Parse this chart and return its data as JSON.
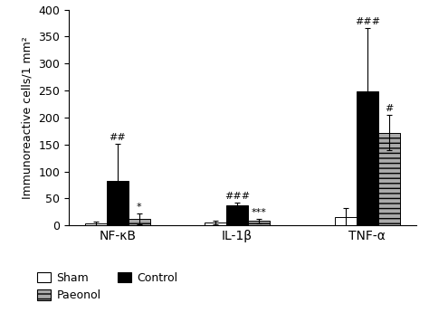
{
  "groups": [
    "NF-κB",
    "IL-1β",
    "TNF-α"
  ],
  "bar_labels": [
    "Sham",
    "Control",
    "Paeonol"
  ],
  "values": {
    "Sham": [
      3,
      5,
      15
    ],
    "Control": [
      83,
      38,
      248
    ],
    "Paeonol": [
      12,
      8,
      172
    ]
  },
  "errors": {
    "Sham": [
      4,
      3,
      18
    ],
    "Control": [
      68,
      5,
      118
    ],
    "Paeonol": [
      10,
      4,
      33
    ]
  },
  "annotations": {
    "Control": [
      "##",
      "###",
      "###"
    ],
    "Paeonol": [
      "*",
      "***",
      "#"
    ]
  },
  "ylabel": "Immunoreactive cells/1 mm²",
  "ylim": [
    0,
    400
  ],
  "yticks": [
    0,
    50,
    100,
    150,
    200,
    250,
    300,
    350,
    400
  ],
  "bar_width": 0.2,
  "colors": {
    "Sham": "white",
    "Control": "black",
    "Paeonol": "#aaaaaa"
  },
  "hatch": {
    "Sham": "",
    "Control": "",
    "Paeonol": "---"
  },
  "edgecolor": "black",
  "fig_bg": "white",
  "fontsize_ticks": 9,
  "fontsize_annot": 8,
  "fontsize_ylabel": 9,
  "fontsize_legend": 9,
  "fontsize_xticklabels": 10
}
